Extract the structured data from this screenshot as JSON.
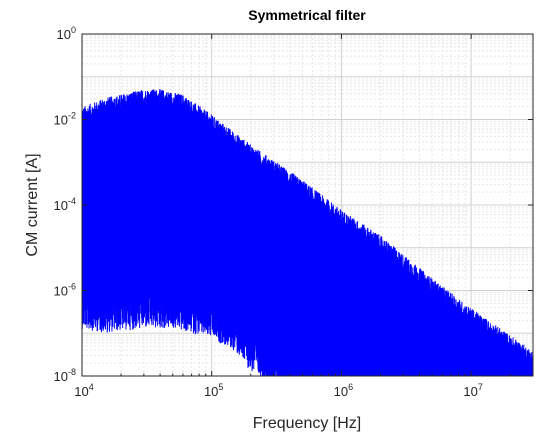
{
  "chart_data": {
    "type": "line",
    "title": "Symmetrical filter",
    "xlabel": "Frequency   [Hz]",
    "ylabel": "CM current   [A]",
    "x_scale": "log",
    "y_scale": "log",
    "xlim": [
      10000,
      30000000
    ],
    "ylim": [
      1e-08,
      1
    ],
    "grid": true,
    "line_color": "#0000ff",
    "x_ticks": [
      {
        "base": "10",
        "exp": "4"
      },
      {
        "base": "10",
        "exp": "5"
      },
      {
        "base": "10",
        "exp": "6"
      },
      {
        "base": "10",
        "exp": "7"
      }
    ],
    "y_ticks": [
      {
        "base": "10",
        "exp": "0"
      },
      {
        "base": "10",
        "exp": "-2"
      },
      {
        "base": "10",
        "exp": "-4"
      },
      {
        "base": "10",
        "exp": "-6"
      },
      {
        "base": "10",
        "exp": "-8"
      }
    ],
    "series": [
      {
        "upper_envelope": {
          "x": [
            10000,
            15000,
            20000,
            30000,
            40000,
            60000,
            100000,
            200000,
            500000,
            1000000,
            2000000,
            5000000,
            10000000,
            20000000,
            30000000
          ],
          "y": [
            0.015,
            0.025,
            0.03,
            0.04,
            0.04,
            0.03,
            0.01,
            0.002,
            0.0003,
            6e-05,
            1.5e-05,
            1.5e-06,
            3e-07,
            7e-08,
            3e-08
          ]
        },
        "lower_envelope": {
          "x": [
            10000,
            15000,
            20000,
            30000,
            50000,
            100000,
            150000,
            200000,
            300000,
            500000,
            700000
          ],
          "y": [
            1e-06,
            8e-07,
            9e-07,
            1e-06,
            1e-06,
            6e-07,
            3e-07,
            1e-07,
            4e-08,
            1.5e-08,
            1e-08
          ]
        }
      }
    ]
  }
}
